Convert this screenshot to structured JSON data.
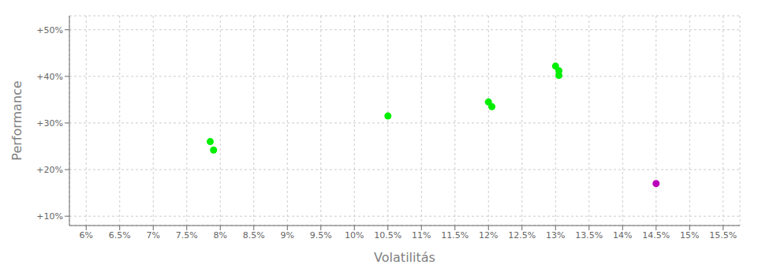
{
  "chart_data": {
    "type": "scatter",
    "xlabel": "Volatilitás",
    "ylabel": "Performance",
    "series": [
      {
        "color": "#00ee00",
        "x": [
          7.85,
          7.9,
          10.5,
          12.0,
          12.05,
          13.0,
          13.05,
          13.05
        ],
        "y": [
          26.0,
          24.2,
          31.5,
          34.5,
          33.5,
          42.2,
          41.2,
          40.2
        ]
      },
      {
        "color": "#bb00bb",
        "x": [
          14.5
        ],
        "y": [
          17.0
        ]
      }
    ],
    "xlim": [
      5.75,
      15.75
    ],
    "ylim": [
      8,
      53
    ],
    "xticks": [
      {
        "value": 6,
        "label": "6%"
      },
      {
        "value": 6.5,
        "label": "6.5%"
      },
      {
        "value": 7,
        "label": "7%"
      },
      {
        "value": 7.5,
        "label": "7.5%"
      },
      {
        "value": 8,
        "label": "8%"
      },
      {
        "value": 8.5,
        "label": "8.5%"
      },
      {
        "value": 9,
        "label": "9%"
      },
      {
        "value": 9.5,
        "label": "9.5%"
      },
      {
        "value": 10,
        "label": "10%"
      },
      {
        "value": 10.5,
        "label": "10.5%"
      },
      {
        "value": 11,
        "label": "11%"
      },
      {
        "value": 11.5,
        "label": "11.5%"
      },
      {
        "value": 12,
        "label": "12%"
      },
      {
        "value": 12.5,
        "label": "12.5%"
      },
      {
        "value": 13,
        "label": "13%"
      },
      {
        "value": 13.5,
        "label": "13.5%"
      },
      {
        "value": 14,
        "label": "14%"
      },
      {
        "value": 14.5,
        "label": "14.5%"
      },
      {
        "value": 15,
        "label": "15%"
      },
      {
        "value": 15.5,
        "label": "15.5%"
      }
    ],
    "yticks": [
      {
        "value": 10,
        "label": "+10%"
      },
      {
        "value": 20,
        "label": "+20%"
      },
      {
        "value": 30,
        "label": "+30%"
      },
      {
        "value": 40,
        "label": "+40%"
      },
      {
        "value": 50,
        "label": "+50%"
      }
    ],
    "grid": true
  }
}
